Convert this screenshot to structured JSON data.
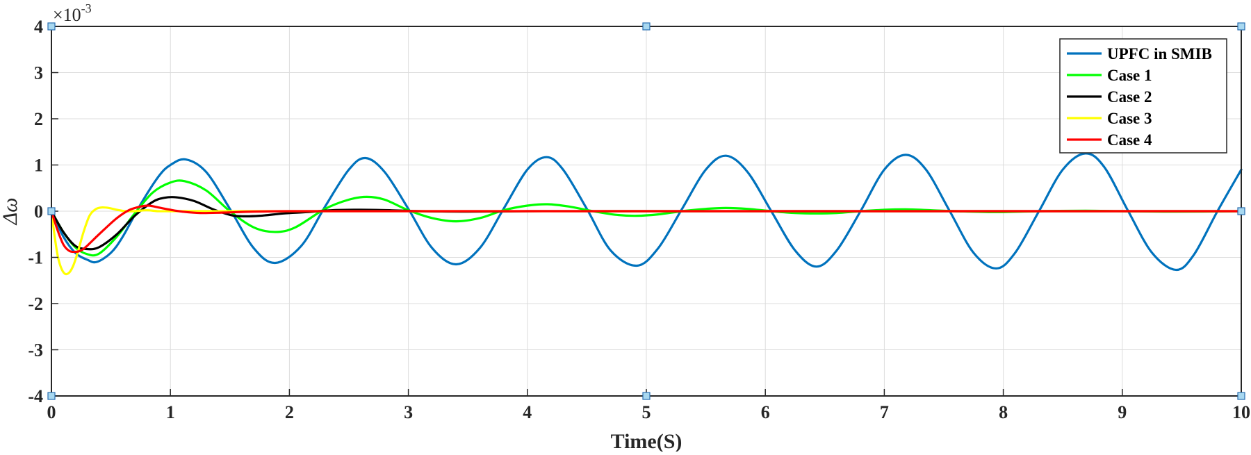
{
  "chart_data": {
    "type": "line",
    "title": "",
    "xlabel": "Time(S)",
    "ylabel": "Δω",
    "y_scale_label": "×10",
    "y_scale_exponent": "-3",
    "xlim": [
      0,
      10
    ],
    "ylim": [
      -4,
      4
    ],
    "x_ticks": [
      "0",
      "1",
      "2",
      "3",
      "4",
      "5",
      "6",
      "7",
      "8",
      "9",
      "10"
    ],
    "y_ticks": [
      "-4",
      "-3",
      "-2",
      "-1",
      "0",
      "1",
      "2",
      "3",
      "4"
    ],
    "grid": true,
    "legend_position": "top-right",
    "series": [
      {
        "name": "UPFC in SMIB",
        "color": "#0072BD",
        "x": [
          0,
          0.1,
          0.2,
          0.3,
          0.38,
          0.5,
          0.6,
          0.75,
          0.9,
          1.0,
          1.13,
          1.3,
          1.5,
          1.7,
          1.88,
          2.1,
          2.3,
          2.5,
          2.64,
          2.8,
          3.0,
          3.2,
          3.4,
          3.6,
          3.8,
          4.0,
          4.16,
          4.3,
          4.5,
          4.7,
          4.92,
          5.1,
          5.3,
          5.5,
          5.67,
          5.85,
          6.05,
          6.25,
          6.43,
          6.6,
          6.8,
          7.0,
          7.18,
          7.35,
          7.55,
          7.75,
          7.94,
          8.1,
          8.3,
          8.5,
          8.69,
          8.85,
          9.05,
          9.25,
          9.45,
          9.6,
          9.8,
          10.0
        ],
        "y": [
          0,
          -0.55,
          -0.9,
          -1.05,
          -1.1,
          -0.9,
          -0.55,
          0.15,
          0.75,
          1.0,
          1.12,
          0.85,
          0.05,
          -0.8,
          -1.12,
          -0.75,
          0.1,
          0.9,
          1.15,
          0.85,
          0.05,
          -0.8,
          -1.15,
          -0.8,
          0.05,
          0.9,
          1.17,
          0.9,
          0.05,
          -0.85,
          -1.18,
          -0.8,
          0.05,
          0.9,
          1.2,
          0.85,
          0.0,
          -0.85,
          -1.2,
          -0.85,
          0.0,
          0.9,
          1.22,
          0.9,
          0.0,
          -0.9,
          -1.24,
          -0.9,
          0.0,
          0.9,
          1.25,
          0.95,
          0.0,
          -0.9,
          -1.27,
          -0.95,
          0.0,
          0.9
        ]
      },
      {
        "name": "Case 1",
        "color": "#00FF00",
        "x": [
          0,
          0.1,
          0.2,
          0.3,
          0.4,
          0.55,
          0.7,
          0.85,
          1.0,
          1.12,
          1.3,
          1.5,
          1.7,
          1.88,
          2.05,
          2.3,
          2.5,
          2.65,
          2.8,
          3.0,
          3.2,
          3.4,
          3.6,
          3.8,
          4.0,
          4.17,
          4.35,
          4.55,
          4.75,
          4.92,
          5.1,
          5.3,
          5.5,
          5.67,
          5.85,
          6.05,
          6.25,
          6.43,
          6.6,
          6.8,
          7.0,
          7.18,
          7.4,
          7.6,
          7.94,
          8.3,
          8.69,
          9.0,
          9.45,
          10.0
        ],
        "y": [
          0,
          -0.45,
          -0.78,
          -0.93,
          -0.92,
          -0.55,
          -0.05,
          0.4,
          0.62,
          0.65,
          0.45,
          0.0,
          -0.35,
          -0.45,
          -0.35,
          0.05,
          0.25,
          0.31,
          0.25,
          0.02,
          -0.15,
          -0.22,
          -0.15,
          0.02,
          0.12,
          0.15,
          0.1,
          0.0,
          -0.08,
          -0.1,
          -0.07,
          0.0,
          0.05,
          0.07,
          0.05,
          0.0,
          -0.04,
          -0.05,
          -0.04,
          0.0,
          0.03,
          0.04,
          0.02,
          0.0,
          -0.02,
          0.0,
          0.01,
          0.0,
          -0.01,
          0.0
        ]
      },
      {
        "name": "Case 2",
        "color": "#000000",
        "x": [
          0,
          0.1,
          0.2,
          0.3,
          0.4,
          0.55,
          0.7,
          0.85,
          0.95,
          1.05,
          1.2,
          1.35,
          1.5,
          1.6,
          1.75,
          1.95,
          2.15,
          2.35,
          2.6,
          2.85,
          3.1,
          3.5,
          4.0,
          5.0,
          10.0
        ],
        "y": [
          0,
          -0.45,
          -0.75,
          -0.82,
          -0.78,
          -0.5,
          -0.1,
          0.2,
          0.29,
          0.3,
          0.22,
          0.05,
          -0.08,
          -0.11,
          -0.1,
          -0.05,
          -0.02,
          0.02,
          0.03,
          0.02,
          0.0,
          -0.01,
          0.0,
          0.0,
          0.0
        ]
      },
      {
        "name": "Case 3",
        "color": "#FFFF00",
        "x": [
          0,
          0.03,
          0.06,
          0.1,
          0.14,
          0.18,
          0.22,
          0.27,
          0.32,
          0.37,
          0.42,
          0.48,
          0.55,
          0.62,
          0.7,
          0.8,
          0.9,
          1.0,
          1.2,
          1.5,
          2.0,
          10.0
        ],
        "y": [
          0,
          -0.6,
          -1.05,
          -1.32,
          -1.35,
          -1.2,
          -0.9,
          -0.45,
          -0.1,
          0.04,
          0.08,
          0.07,
          0.03,
          0.0,
          0.0,
          0.02,
          0.0,
          0.0,
          0.0,
          0.0,
          0.0,
          0.0
        ]
      },
      {
        "name": "Case 4",
        "color": "#FF0000",
        "x": [
          0,
          0.05,
          0.1,
          0.15,
          0.2,
          0.25,
          0.3,
          0.38,
          0.45,
          0.55,
          0.65,
          0.75,
          0.82,
          0.9,
          1.0,
          1.1,
          1.25,
          1.45,
          1.7,
          2.0,
          2.5,
          3.0,
          10.0
        ],
        "y": [
          0,
          -0.4,
          -0.72,
          -0.86,
          -0.88,
          -0.85,
          -0.75,
          -0.55,
          -0.38,
          -0.15,
          0.02,
          0.1,
          0.12,
          0.08,
          0.03,
          -0.01,
          -0.04,
          -0.03,
          -0.01,
          0.0,
          0.0,
          0.0,
          0.0
        ]
      }
    ]
  }
}
